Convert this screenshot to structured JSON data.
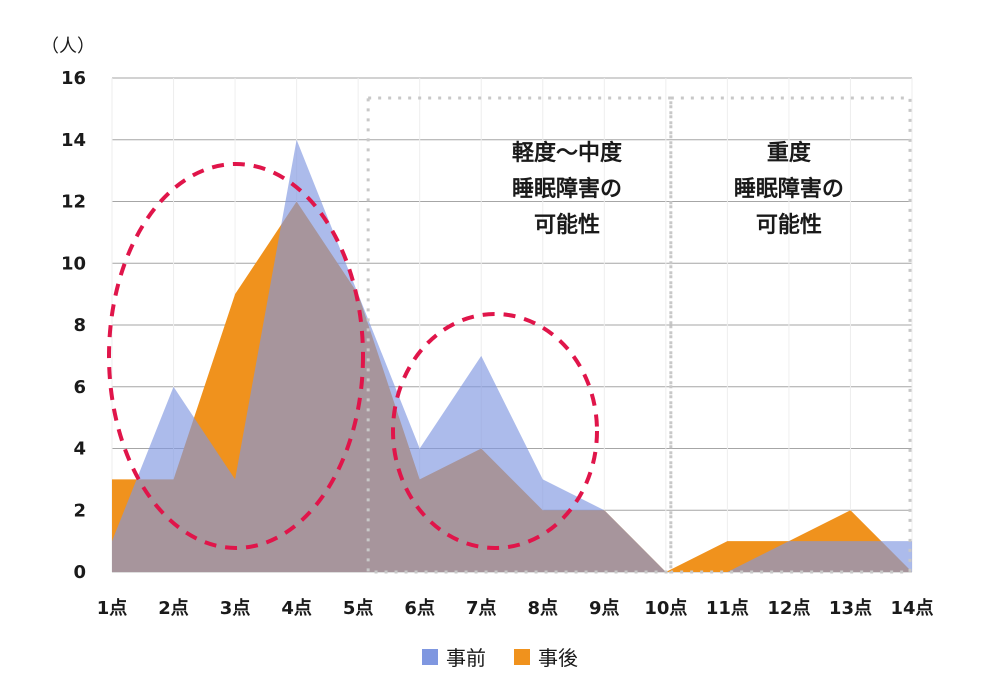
{
  "chart_data": {
    "type": "area",
    "unit_label": "（人）",
    "categories": [
      "1点",
      "2点",
      "3点",
      "4点",
      "5点",
      "6点",
      "7点",
      "8点",
      "9点",
      "10点",
      "11点",
      "12点",
      "13点",
      "14点"
    ],
    "ylim": [
      0,
      16
    ],
    "yticks": [
      "0",
      "2",
      "4",
      "6",
      "8",
      "10",
      "12",
      "14",
      "16"
    ],
    "grid": true,
    "legend_position": "bottom",
    "series": [
      {
        "name": "事前",
        "values": [
          1,
          6,
          3,
          14,
          9,
          4,
          7,
          3,
          2,
          0,
          0,
          1,
          1,
          1
        ],
        "color": "#7f97e0"
      },
      {
        "name": "事後",
        "values": [
          3,
          3,
          9,
          12,
          9,
          3,
          4,
          2,
          2,
          0,
          1,
          1,
          2,
          0
        ],
        "color": "#f0921d"
      }
    ],
    "annotations": [
      {
        "lines": [
          "軽度〜中度",
          "睡眠障害の",
          "可能性"
        ]
      },
      {
        "lines": [
          "重度",
          "睡眠障害の",
          "可能性"
        ]
      }
    ],
    "overlap_color": "#9c7a6e",
    "highlight_color": "#e0154a",
    "box_color": "#c8c8c8"
  }
}
